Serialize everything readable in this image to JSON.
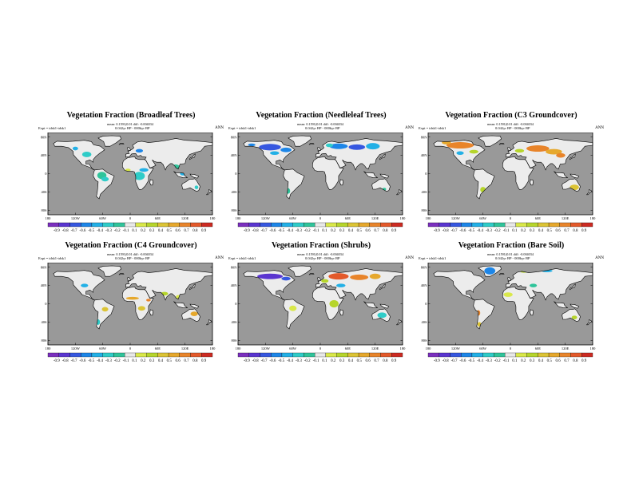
{
  "colorbar_colors": [
    "#7b2fbe",
    "#5a35d0",
    "#3657e0",
    "#1d86e8",
    "#22b0e6",
    "#2fccc8",
    "#2fc49a",
    "#e8e8e8",
    "#d9e84a",
    "#b6d52b",
    "#dcc435",
    "#e6a82c",
    "#e8842a",
    "#e3592a",
    "#cc2a22"
  ],
  "colors": {
    "ocean": "#999999",
    "land": "#ececec",
    "coast": "#000000"
  },
  "lat_labels": [
    "80N",
    "40N",
    "0",
    "40S",
    "80S"
  ],
  "lon_labels": [
    "180",
    "120W",
    "60W",
    "0",
    "60E",
    "120E",
    "180"
  ],
  "panels": [
    {
      "id": "broadleaf",
      "title": "Vegetation Fraction (Broadleaf Trees)",
      "stats": "mean: 0.1591(0.01 diff: -0.004034",
      "expt": "Expt = tdsk1-tdsk1",
      "diff": "0.042yr BP - 000kyr BP",
      "season": "ANN",
      "ticks": [
        "-0.9",
        "-0.8",
        "-0.7",
        "-0.6",
        "-0.5",
        "-0.4",
        "-0.3",
        "-0.2",
        "-0.1",
        "0.1",
        "0.2",
        "0.3",
        "0.4",
        "0.5",
        "0.6",
        "0.7",
        "0.8",
        "0.9"
      ]
    },
    {
      "id": "needleleaf",
      "title": "Vegetation Fraction (Needleleaf Trees)",
      "stats": "mean: 0.1591(0.01 diff: -0.004034",
      "expt": "Expt = tdsk1-tdsk1",
      "diff": "0.042yr BP - 000kyr BP",
      "season": "ANN",
      "ticks": [
        "-0.9",
        "-0.8",
        "-0.7",
        "-0.6",
        "-0.5",
        "-0.4",
        "-0.3",
        "-0.2",
        "-0.1",
        "0.1",
        "0.2",
        "0.3",
        "0.4",
        "0.5",
        "0.6",
        "0.7",
        "0.8",
        "0.9"
      ]
    },
    {
      "id": "c3",
      "title": "Vegetation Fraction (C3 Groundcover)",
      "stats": "mean: 0.1591(0.01 diff: -0.004034",
      "expt": "Expt = tdsk1-tdsk1",
      "diff": "0.042yr BP - 000kyr BP",
      "season": "ANN",
      "ticks": [
        "-0.9",
        "-0.8",
        "-0.7",
        "-0.6",
        "-0.5",
        "-0.4",
        "-0.3",
        "-0.2",
        "-0.1",
        "0.1",
        "0.2",
        "0.3",
        "0.4",
        "0.5",
        "0.6",
        "0.7",
        "0.8",
        "0.9"
      ]
    },
    {
      "id": "c4",
      "title": "Vegetation Fraction (C4 Groundcover)",
      "stats": "mean: 0.1591(0.01 diff: -0.004034",
      "expt": "Expt = tdsk1-tdsk1",
      "diff": "0.042yr BP - 000kyr BP",
      "season": "ANN",
      "ticks": [
        "-0.9",
        "-0.8",
        "-0.7",
        "-0.6",
        "-0.5",
        "-0.4",
        "-0.3",
        "-0.2",
        "-0.1",
        "0.1",
        "0.2",
        "0.3",
        "0.4",
        "0.5",
        "0.6",
        "0.7",
        "0.8",
        "0.9"
      ]
    },
    {
      "id": "shrubs",
      "title": "Vegetation Fraction (Shrubs)",
      "stats": "mean: 0.1591(0.01 diff: -0.004034",
      "expt": "Expt = tdsk1-tdsk1",
      "diff": "0.042yr BP - 000kyr BP",
      "season": "ANN",
      "ticks": [
        "-0.9",
        "-0.8",
        "-0.7",
        "-0.6",
        "-0.5",
        "-0.4",
        "-0.3",
        "-0.2",
        "-0.1",
        "0.1",
        "0.2",
        "0.3",
        "0.4",
        "0.5",
        "0.6",
        "0.7",
        "0.8",
        "0.9"
      ]
    },
    {
      "id": "baresoil",
      "title": "Vegetation Fraction (Bare Soil)",
      "stats": "mean: 0.1591(0.01 diff: -0.004034",
      "expt": "Expt = tdsk1-tdsk1",
      "diff": "0.042yr BP - 000kyr BP",
      "season": "ANN",
      "ticks": [
        "-0.9",
        "-0.8",
        "-0.7",
        "-0.6",
        "-0.5",
        "-0.4",
        "-0.3",
        "-0.2",
        "-0.1",
        "0.1",
        "0.2",
        "0.3",
        "0.4",
        "0.5",
        "0.6",
        "0.7",
        "0.8",
        "0.9"
      ]
    }
  ]
}
